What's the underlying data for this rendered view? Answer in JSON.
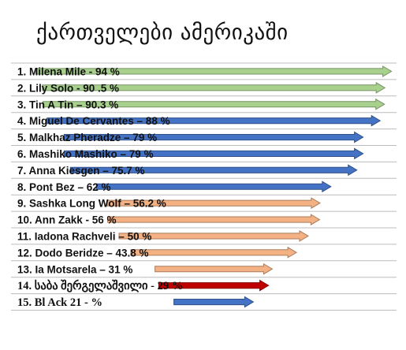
{
  "title": "ქართველები ამერიკაში",
  "chart_data": {
    "type": "bar",
    "orientation": "horizontal",
    "mark": "arrow",
    "rows": [
      {
        "label": "1.  Milena Mile - 94 %",
        "value": 94,
        "color": "#a9d18e"
      },
      {
        "label": "2.  Lily Solo -  90 .5 %",
        "value": 90.5,
        "color": "#a9d18e"
      },
      {
        "label": "3.  Tin A Tin – 90.3 %",
        "value": 90.3,
        "color": "#a9d18e"
      },
      {
        "label": "4.   Miguel De Cervantes – 88 %",
        "value": 88,
        "color": "#4472c4"
      },
      {
        "label": "5.  Malkhaz Pheradze – 79 %",
        "value": 79,
        "color": "#4472c4"
      },
      {
        "label": "6.  Mashiko Mashiko – 79 %",
        "value": 79,
        "color": "#4472c4"
      },
      {
        "label": "7.  Anna Kiesgen – 75.7 %",
        "value": 75.7,
        "color": "#4472c4"
      },
      {
        "label": "8.  Pont Bez – 62 %",
        "value": 62,
        "color": "#4472c4"
      },
      {
        "label": "9.  Sashka Long Wolf – 56.2 %",
        "value": 56.2,
        "color": "#f4b183"
      },
      {
        "label": "10. Ann Zakk - 56 %",
        "value": 56,
        "color": "#f4b183"
      },
      {
        "label": "11. Iadona Rachveli – 50 %",
        "value": 50,
        "color": "#f4b183"
      },
      {
        "label": "12. Dodo Beridze – 43.8 %",
        "value": 43.8,
        "color": "#f4b183"
      },
      {
        "label": "13. Ia Motsarela – 31 %",
        "value": 31,
        "color": "#f4b183"
      },
      {
        "label": "14. საბა შერგელაშვილი - 29 %",
        "value": 29,
        "color": "#c00000",
        "font": "serif"
      },
      {
        "label": "15. Bl Ack 21 - %",
        "value": 21,
        "color": "#4472c4",
        "font": "serif"
      }
    ]
  }
}
